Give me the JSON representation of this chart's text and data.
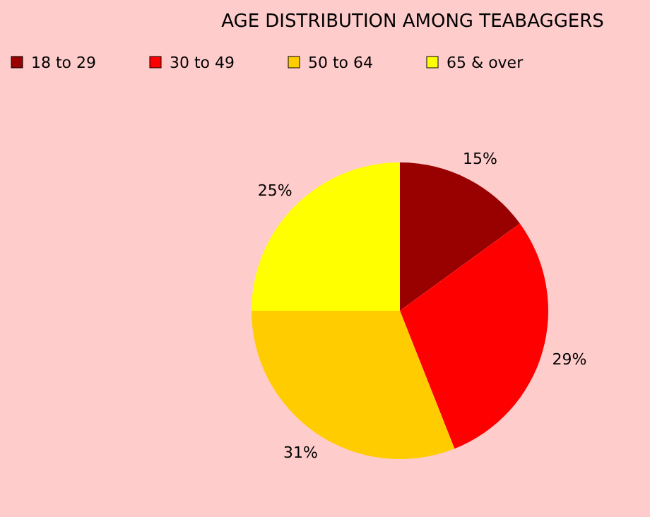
{
  "chart_data": {
    "type": "pie",
    "title": "AGE DISTRIBUTION AMONG TEABAGGERS",
    "categories": [
      "18 to 29",
      "30 to 49",
      "50 to 64",
      "65 & over"
    ],
    "values": [
      15,
      29,
      31,
      25
    ],
    "colors": [
      "#990000",
      "#ff0000",
      "#ffcc00",
      "#ffff00"
    ],
    "value_labels": [
      "15%",
      "29%",
      "31%",
      "25%"
    ],
    "legend": "top"
  }
}
